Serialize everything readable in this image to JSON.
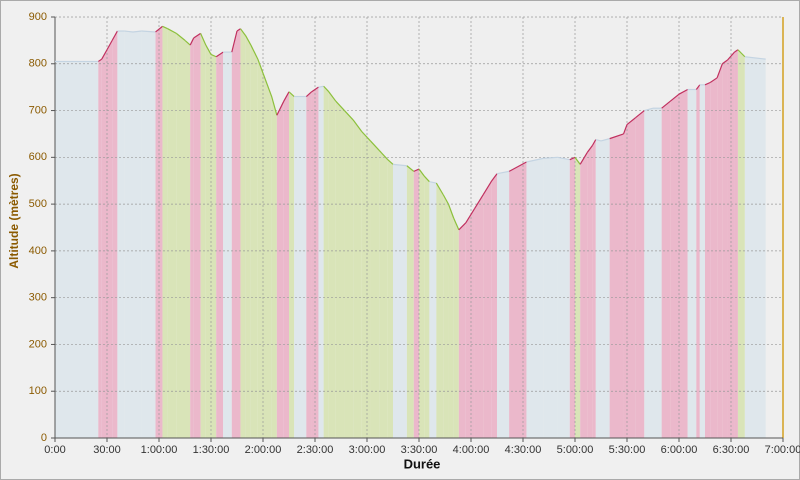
{
  "chart_data": {
    "type": "area",
    "x_label": "Durée",
    "y_label": "Altitude (mètres)",
    "x": [
      0,
      25,
      27,
      30,
      33,
      36,
      40,
      45,
      50,
      58,
      62,
      65,
      70,
      75,
      78,
      80,
      84,
      87,
      90,
      93,
      97,
      102,
      105,
      107,
      110,
      113,
      117,
      120,
      125,
      128,
      132,
      135,
      138,
      145,
      148,
      152,
      155,
      158,
      162,
      167,
      172,
      177,
      182,
      187,
      192,
      195,
      203,
      207,
      210,
      213,
      216,
      220,
      224,
      227,
      230,
      233,
      237,
      242,
      247,
      252,
      255,
      262,
      272,
      282,
      290,
      297,
      300,
      303,
      307,
      310,
      312,
      315,
      320,
      328,
      330,
      335,
      340,
      345,
      350,
      355,
      360,
      365,
      370,
      372,
      375,
      378,
      382,
      385,
      388,
      392,
      394,
      398,
      410
    ],
    "series": [
      {
        "name": "Altitude",
        "values": [
          805,
          805,
          810,
          830,
          850,
          870,
          870,
          868,
          870,
          868,
          880,
          875,
          865,
          850,
          840,
          855,
          865,
          840,
          820,
          815,
          825,
          825,
          870,
          875,
          860,
          840,
          810,
          780,
          730,
          690,
          720,
          740,
          730,
          730,
          740,
          750,
          752,
          740,
          720,
          700,
          680,
          655,
          635,
          615,
          595,
          585,
          582,
          570,
          575,
          560,
          548,
          545,
          520,
          500,
          470,
          445,
          460,
          490,
          520,
          550,
          565,
          570,
          590,
          598,
          600,
          595,
          600,
          585,
          610,
          625,
          638,
          635,
          640,
          650,
          670,
          685,
          700,
          705,
          705,
          720,
          735,
          745,
          745,
          755,
          755,
          760,
          770,
          800,
          808,
          825,
          830,
          815,
          810
        ]
      }
    ],
    "up_color": "#ebb8cb",
    "down_color": "#d9e4b8",
    "flat_color": "#dfe7ec",
    "up_line": "#c0305f",
    "down_line": "#8cc03c",
    "flat_line": "#c4d4e2",
    "xlim": [
      0,
      420
    ],
    "ylim": [
      0,
      900
    ],
    "xticks": [
      {
        "value": 0,
        "label": "0:00"
      },
      {
        "value": 30,
        "label": "30:00"
      },
      {
        "value": 60,
        "label": "1:00:00"
      },
      {
        "value": 90,
        "label": "1:30:00"
      },
      {
        "value": 120,
        "label": "2:00:00"
      },
      {
        "value": 150,
        "label": "2:30:00"
      },
      {
        "value": 180,
        "label": "3:00:00"
      },
      {
        "value": 210,
        "label": "3:30:00"
      },
      {
        "value": 240,
        "label": "4:00:00"
      },
      {
        "value": 270,
        "label": "4:30:00"
      },
      {
        "value": 300,
        "label": "5:00:00"
      },
      {
        "value": 330,
        "label": "5:30:00"
      },
      {
        "value": 360,
        "label": "6:00:00"
      },
      {
        "value": 390,
        "label": "6:30:00"
      },
      {
        "value": 420,
        "label": "7:00:00"
      }
    ],
    "yticks": [
      0,
      100,
      200,
      300,
      400,
      500,
      600,
      700,
      800,
      900
    ],
    "grid": true
  }
}
